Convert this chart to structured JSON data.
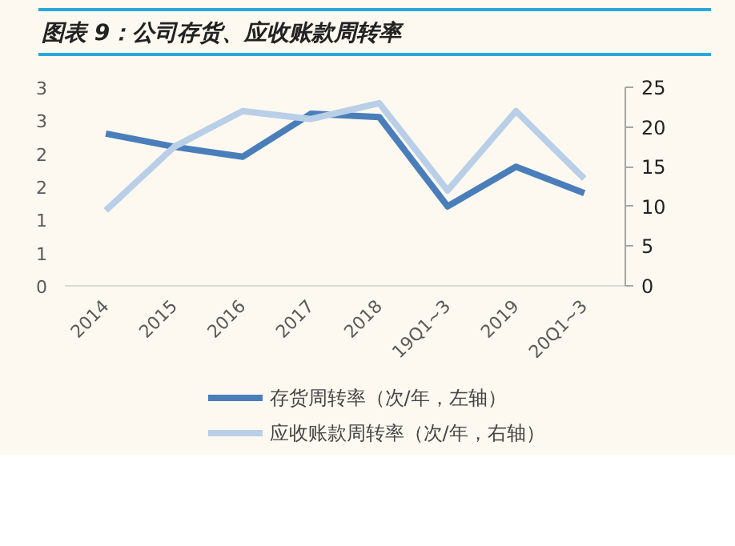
{
  "chart_data": {
    "type": "line",
    "title": "图表 9：公司存货、应收账款周转率",
    "categories": [
      "2014",
      "2015",
      "2016",
      "2017",
      "2018",
      "19Q1~3",
      "2019",
      "20Q1~3"
    ],
    "series": [
      {
        "name": "存货周转率（次/年，左轴）",
        "color": "#4a7ebb",
        "values": [
          2.3,
          2.1,
          1.95,
          2.6,
          2.55,
          1.2,
          1.8,
          1.4
        ]
      },
      {
        "name": "应收账款周转率（次/年，右轴）",
        "color": "#b9cfe8",
        "axis": "y2",
        "values": [
          9.5,
          17.5,
          22,
          21,
          23,
          12,
          22,
          13.5
        ]
      }
    ],
    "ylim": [
      0,
      3
    ],
    "yticks": [
      0,
      {
        "value": 0.5,
        "label": "1"
      },
      1,
      {
        "value": 1.5,
        "label": "2"
      },
      2,
      {
        "value": 2.5,
        "label": "3"
      },
      3
    ],
    "y2lim": [
      0,
      25
    ],
    "y2ticks": [
      0,
      5,
      10,
      15,
      20,
      25
    ],
    "grid": false,
    "legend": "bottom",
    "marker": "none",
    "line_style": "solid"
  }
}
